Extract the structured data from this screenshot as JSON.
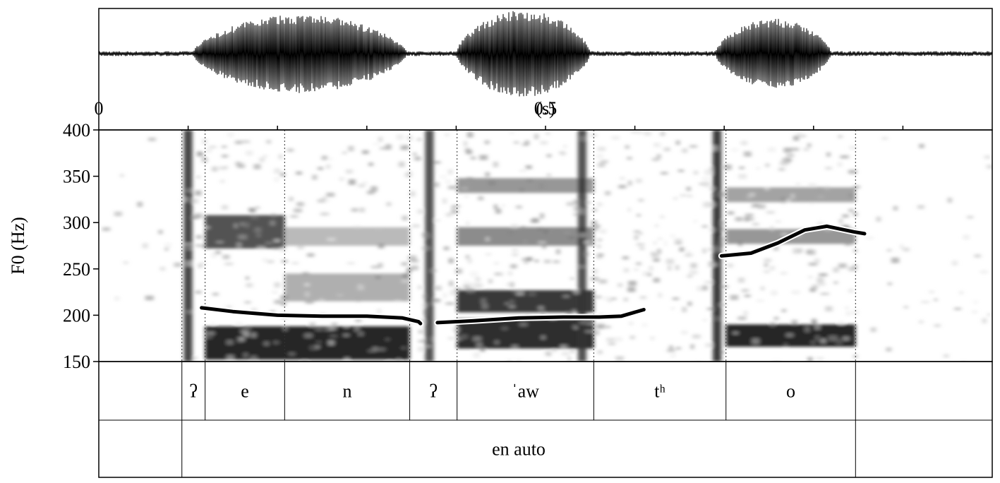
{
  "chart_data": {
    "type": "line",
    "xlabel": "",
    "ylabel": "F0 (Hz)",
    "xlim": [
      0,
      1.0
    ],
    "ylim": [
      150,
      400
    ],
    "yticks": [
      150,
      200,
      250,
      300,
      350,
      400
    ],
    "time_labels": [
      {
        "t": 0,
        "text": "0"
      },
      {
        "t": 0.5,
        "text": "0.5"
      },
      {
        "t": 0.5,
        "text": "(s)"
      }
    ],
    "x_minor_ticks": [
      0.1,
      0.2,
      0.3,
      0.4,
      0.5,
      0.6,
      0.7,
      0.8,
      0.9
    ],
    "series": [
      {
        "points": [
          [
            0.115,
            208
          ],
          [
            0.15,
            204
          ],
          [
            0.2,
            200
          ],
          [
            0.25,
            199
          ],
          [
            0.3,
            199
          ],
          [
            0.34,
            197
          ],
          [
            0.358,
            193
          ],
          [
            0.36,
            191
          ]
        ]
      },
      {
        "points": [
          [
            0.379,
            192
          ],
          [
            0.42,
            194
          ],
          [
            0.47,
            197
          ],
          [
            0.52,
            198
          ],
          [
            0.56,
            198
          ],
          [
            0.585,
            199
          ],
          [
            0.61,
            206
          ]
        ]
      },
      {
        "points": [
          [
            0.697,
            264
          ],
          [
            0.73,
            267
          ],
          [
            0.76,
            278
          ],
          [
            0.79,
            292
          ],
          [
            0.815,
            296
          ],
          [
            0.845,
            290
          ],
          [
            0.857,
            288
          ]
        ]
      }
    ],
    "tiers": [
      {
        "intervals": [
          {
            "start": 0.0,
            "end": 0.093,
            "text": ""
          },
          {
            "start": 0.093,
            "end": 0.119,
            "text": "ʔ"
          },
          {
            "start": 0.119,
            "end": 0.208,
            "text": "e"
          },
          {
            "start": 0.208,
            "end": 0.348,
            "text": "n"
          },
          {
            "start": 0.348,
            "end": 0.401,
            "text": "ʔ"
          },
          {
            "start": 0.401,
            "end": 0.554,
            "text": "ˈaw"
          },
          {
            "start": 0.554,
            "end": 0.702,
            "text": "tʰ"
          },
          {
            "start": 0.702,
            "end": 0.847,
            "text": "o"
          },
          {
            "start": 0.847,
            "end": 1.0,
            "text": ""
          }
        ]
      },
      {
        "intervals": [
          {
            "start": 0.0,
            "end": 0.093,
            "text": ""
          },
          {
            "start": 0.093,
            "end": 0.847,
            "text": "en auto"
          },
          {
            "start": 0.847,
            "end": 1.0,
            "text": ""
          }
        ]
      }
    ],
    "waveform_segments": [
      {
        "start": 0.105,
        "end": 0.345,
        "amp": 0.9
      },
      {
        "start": 0.4,
        "end": 0.55,
        "amp": 1.0
      },
      {
        "start": 0.69,
        "end": 0.82,
        "amp": 0.8
      }
    ],
    "formant_bands": [
      {
        "start": 0.119,
        "end": 0.348,
        "f": 170,
        "w": 18,
        "d": 0.95
      },
      {
        "start": 0.401,
        "end": 0.554,
        "f": 180,
        "w": 16,
        "d": 0.9
      },
      {
        "start": 0.401,
        "end": 0.554,
        "f": 215,
        "w": 12,
        "d": 0.85
      },
      {
        "start": 0.702,
        "end": 0.847,
        "f": 178,
        "w": 12,
        "d": 0.95
      },
      {
        "start": 0.119,
        "end": 0.208,
        "f": 290,
        "w": 18,
        "d": 0.75
      },
      {
        "start": 0.401,
        "end": 0.554,
        "f": 285,
        "w": 10,
        "d": 0.5
      },
      {
        "start": 0.401,
        "end": 0.554,
        "f": 340,
        "w": 8,
        "d": 0.45
      },
      {
        "start": 0.702,
        "end": 0.847,
        "f": 285,
        "w": 8,
        "d": 0.45
      },
      {
        "start": 0.702,
        "end": 0.847,
        "f": 330,
        "w": 8,
        "d": 0.4
      },
      {
        "start": 0.208,
        "end": 0.348,
        "f": 230,
        "w": 15,
        "d": 0.35
      },
      {
        "start": 0.208,
        "end": 0.348,
        "f": 285,
        "w": 10,
        "d": 0.3
      }
    ],
    "bursts": [
      {
        "t": 0.1,
        "d": 0.85
      },
      {
        "t": 0.37,
        "d": 0.8
      },
      {
        "t": 0.541,
        "d": 0.8
      },
      {
        "t": 0.692,
        "d": 0.9
      }
    ],
    "colors": {
      "line": "#000000",
      "halo": "#ffffff",
      "frame": "#000000",
      "dotted": "#333333"
    }
  }
}
